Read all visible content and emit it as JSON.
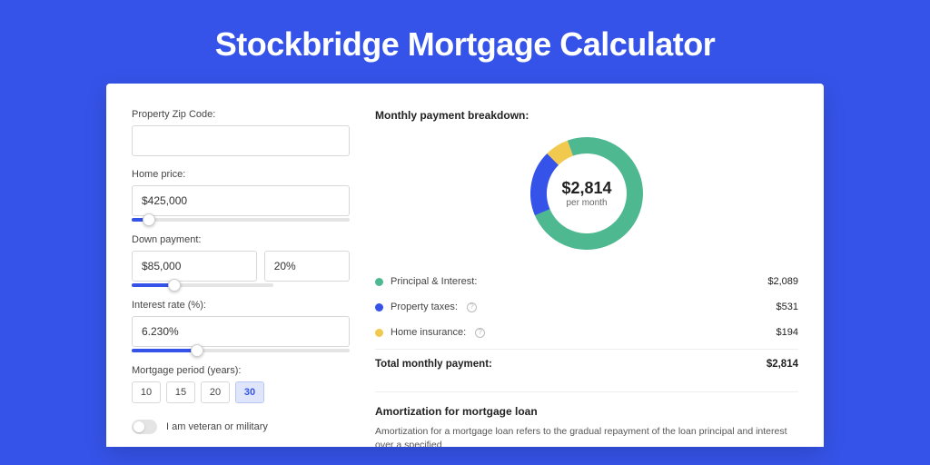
{
  "page": {
    "title": "Stockbridge Mortgage Calculator",
    "colors": {
      "background": "#3553e8",
      "card": "#ffffff",
      "accent": "#3553e8"
    }
  },
  "form": {
    "zip": {
      "label": "Property Zip Code:",
      "value": ""
    },
    "price": {
      "label": "Home price:",
      "value": "$425,000",
      "slider_pct": 8
    },
    "down": {
      "label": "Down payment:",
      "value": "$85,000",
      "pct": "20%",
      "slider_pct": 20
    },
    "rate": {
      "label": "Interest rate (%):",
      "value": "6.230%",
      "slider_pct": 30
    },
    "period": {
      "label": "Mortgage period (years):",
      "options": [
        "10",
        "15",
        "20",
        "30"
      ],
      "selected": "30"
    },
    "veteran": {
      "label": "I am veteran or military",
      "checked": false
    }
  },
  "breakdown": {
    "title": "Monthly payment breakdown:",
    "donut": {
      "amount": "$2,814",
      "sub": "per month",
      "slices": [
        {
          "key": "principal_interest",
          "pct": 74.2,
          "color": "#4eb891"
        },
        {
          "key": "property_taxes",
          "pct": 18.9,
          "color": "#3553e8"
        },
        {
          "key": "home_insurance",
          "pct": 6.9,
          "color": "#f0c94e"
        }
      ],
      "thickness": 18
    },
    "items": [
      {
        "label": "Principal & Interest:",
        "value": "$2,089",
        "color": "#4eb891",
        "info": false
      },
      {
        "label": "Property taxes:",
        "value": "$531",
        "color": "#3553e8",
        "info": true
      },
      {
        "label": "Home insurance:",
        "value": "$194",
        "color": "#f0c94e",
        "info": true
      }
    ],
    "total": {
      "label": "Total monthly payment:",
      "value": "$2,814"
    }
  },
  "amortization": {
    "title": "Amortization for mortgage loan",
    "text": "Amortization for a mortgage loan refers to the gradual repayment of the loan principal and interest over a specified"
  }
}
